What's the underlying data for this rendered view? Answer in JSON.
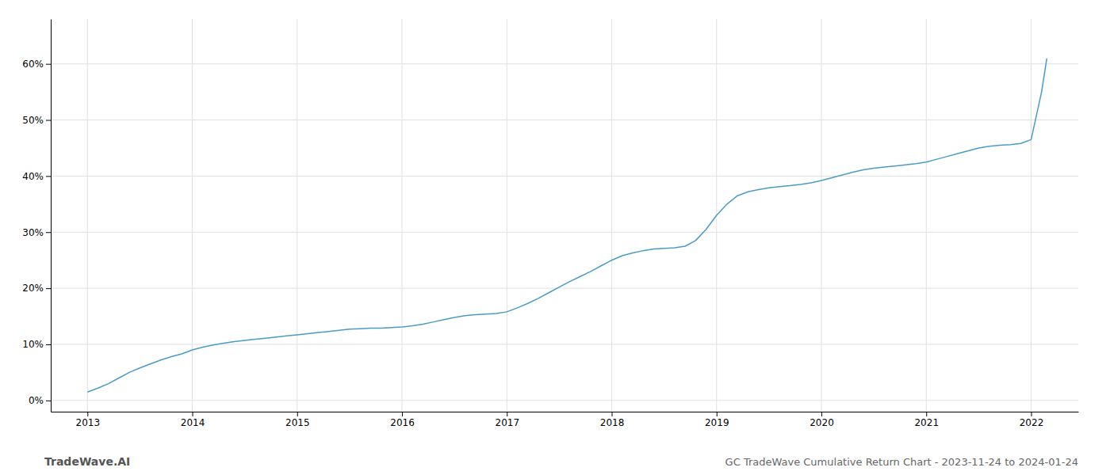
{
  "chart_data": {
    "type": "line",
    "title": "GC TradeWave Cumulative Return Chart - 2023-11-24 to 2024-01-24",
    "annotations": [
      "TradeWave.AI"
    ],
    "color": "#4a9cc7",
    "grid": true,
    "x": [
      2013.0,
      2013.1,
      2013.2,
      2013.3,
      2013.4,
      2013.5,
      2013.6,
      2013.7,
      2013.8,
      2013.9,
      2014.0,
      2014.1,
      2014.2,
      2014.3,
      2014.4,
      2014.5,
      2014.6,
      2014.7,
      2014.8,
      2014.9,
      2015.0,
      2015.1,
      2015.2,
      2015.3,
      2015.4,
      2015.5,
      2015.6,
      2015.7,
      2015.8,
      2015.9,
      2016.0,
      2016.1,
      2016.2,
      2016.3,
      2016.4,
      2016.5,
      2016.6,
      2016.7,
      2016.8,
      2016.9,
      2017.0,
      2017.1,
      2017.2,
      2017.3,
      2017.4,
      2017.5,
      2017.6,
      2017.7,
      2017.8,
      2017.9,
      2018.0,
      2018.1,
      2018.2,
      2018.3,
      2018.4,
      2018.5,
      2018.6,
      2018.7,
      2018.8,
      2018.9,
      2019.0,
      2019.1,
      2019.2,
      2019.3,
      2019.4,
      2019.5,
      2019.6,
      2019.7,
      2019.8,
      2019.9,
      2020.0,
      2020.1,
      2020.2,
      2020.3,
      2020.4,
      2020.5,
      2020.6,
      2020.7,
      2020.8,
      2020.9,
      2021.0,
      2021.1,
      2021.2,
      2021.3,
      2021.4,
      2021.5,
      2021.6,
      2021.7,
      2021.8,
      2021.9,
      2022.0,
      2022.1,
      2022.15
    ],
    "values": [
      1.5,
      2.2,
      3.0,
      4.0,
      5.0,
      5.8,
      6.5,
      7.2,
      7.8,
      8.3,
      9.0,
      9.5,
      9.9,
      10.2,
      10.5,
      10.7,
      10.9,
      11.1,
      11.3,
      11.5,
      11.7,
      11.9,
      12.1,
      12.3,
      12.5,
      12.7,
      12.8,
      12.9,
      12.9,
      13.0,
      13.1,
      13.3,
      13.6,
      14.0,
      14.4,
      14.8,
      15.1,
      15.3,
      15.4,
      15.5,
      15.8,
      16.5,
      17.3,
      18.2,
      19.2,
      20.2,
      21.2,
      22.1,
      23.0,
      24.0,
      25.0,
      25.8,
      26.3,
      26.7,
      27.0,
      27.1,
      27.2,
      27.5,
      28.5,
      30.5,
      33.0,
      35.0,
      36.5,
      37.2,
      37.6,
      37.9,
      38.1,
      38.3,
      38.5,
      38.8,
      39.2,
      39.7,
      40.2,
      40.7,
      41.1,
      41.4,
      41.6,
      41.8,
      42.0,
      42.2,
      42.5,
      43.0,
      43.5,
      44.0,
      44.5,
      45.0,
      45.3,
      45.5,
      45.6,
      45.8,
      46.5,
      55.0,
      61.0
    ],
    "xlim": [
      2012.65,
      2022.45
    ],
    "xticks": [
      2013,
      2014,
      2015,
      2016,
      2017,
      2018,
      2019,
      2020,
      2021,
      2022
    ],
    "ylim": [
      -2,
      68
    ],
    "yticks": [
      {
        "value": 0,
        "label": "0%"
      },
      {
        "value": 10,
        "label": "10%"
      },
      {
        "value": 20,
        "label": "20%"
      },
      {
        "value": 30,
        "label": "30%"
      },
      {
        "value": 40,
        "label": "40%"
      },
      {
        "value": 50,
        "label": "50%"
      },
      {
        "value": 60,
        "label": "60%"
      }
    ]
  }
}
